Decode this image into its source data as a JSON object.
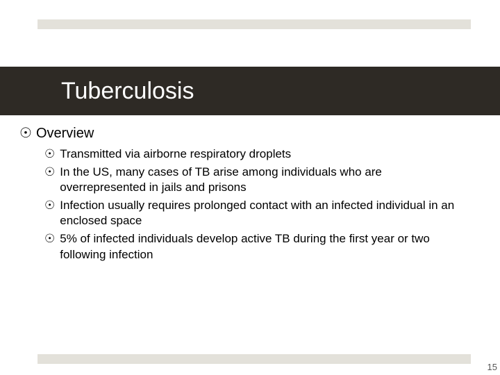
{
  "colors": {
    "top_bar": "#e3e1da",
    "title_block_bg": "#2e2a25",
    "title_text": "#ffffff",
    "body_text": "#000000",
    "bottom_bar": "#e3e1da",
    "page_num": "#555555",
    "background": "#ffffff"
  },
  "bullet_char": "☉",
  "title": "Tuberculosis",
  "heading": "Overview",
  "items": [
    "Transmitted via airborne respiratory droplets",
    "In the US, many cases of TB arise among individuals who are overrepresented in jails and prisons",
    "Infection usually requires prolonged contact with an infected individual in an enclosed space",
    "5% of infected individuals develop active TB during the first year or two following infection"
  ],
  "page_number": "15"
}
